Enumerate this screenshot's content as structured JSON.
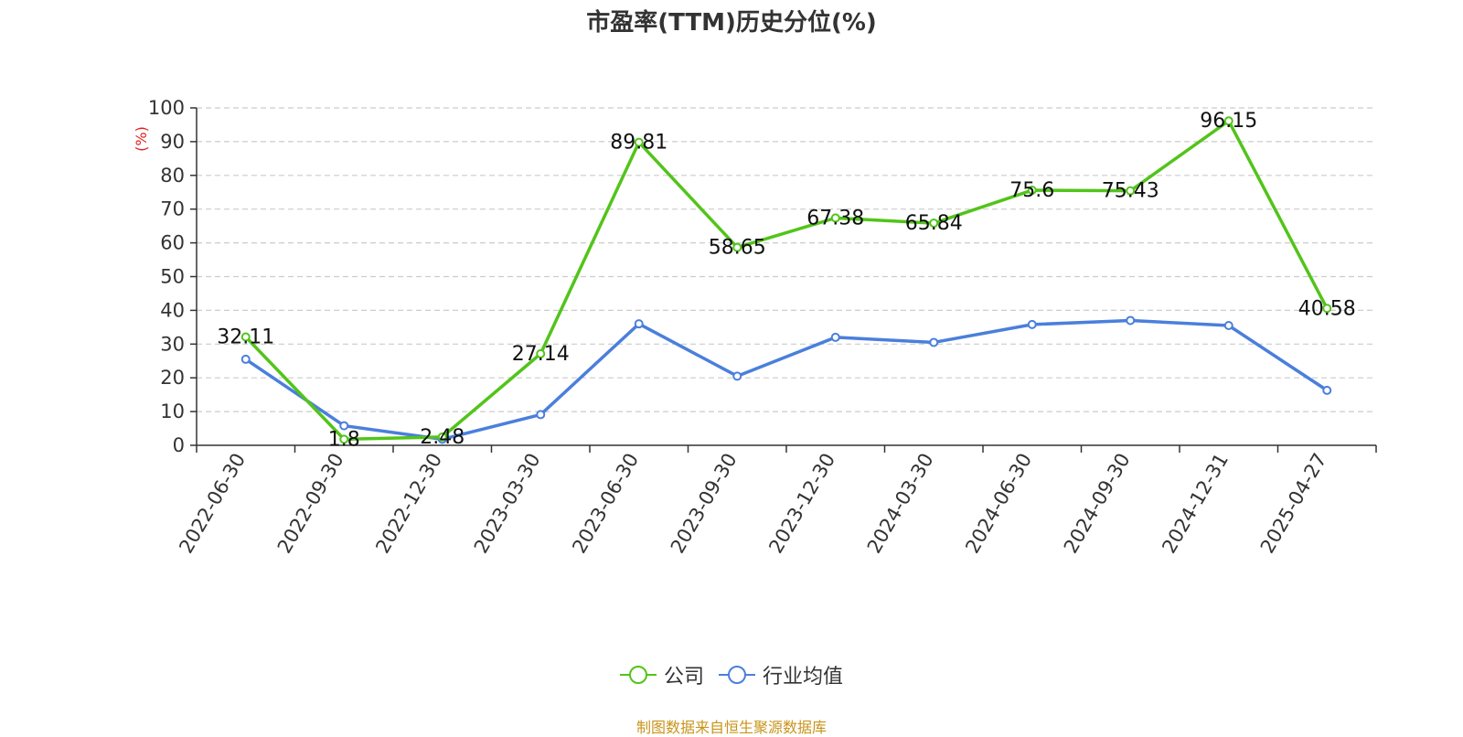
{
  "chart_data": {
    "type": "line",
    "title": "市盈率(TTM)历史分位(%)",
    "ylabel": "(%)",
    "xlabel": "",
    "ylim": [
      0,
      100
    ],
    "yticks": [
      0,
      10,
      20,
      30,
      40,
      50,
      60,
      70,
      80,
      90,
      100
    ],
    "grid": true,
    "legend_position": "bottom",
    "categories": [
      "2022-06-30",
      "2022-09-30",
      "2022-12-30",
      "2023-03-30",
      "2023-06-30",
      "2023-09-30",
      "2023-12-30",
      "2024-03-30",
      "2024-06-30",
      "2024-09-30",
      "2024-12-31",
      "2025-04-27"
    ],
    "series": [
      {
        "name": "公司",
        "color": "#52c41a",
        "show_labels": true,
        "values": [
          32.11,
          1.8,
          2.48,
          27.14,
          89.81,
          58.65,
          67.38,
          65.84,
          75.6,
          75.43,
          96.15,
          40.58
        ]
      },
      {
        "name": "行业均值",
        "color": "#4a7fdc",
        "show_labels": false,
        "values": [
          25.5,
          5.8,
          1.8,
          9.1,
          36.0,
          20.5,
          32.0,
          30.5,
          35.8,
          37.0,
          35.5,
          16.3
        ]
      }
    ]
  },
  "source": "制图数据来自恒生聚源数据库"
}
